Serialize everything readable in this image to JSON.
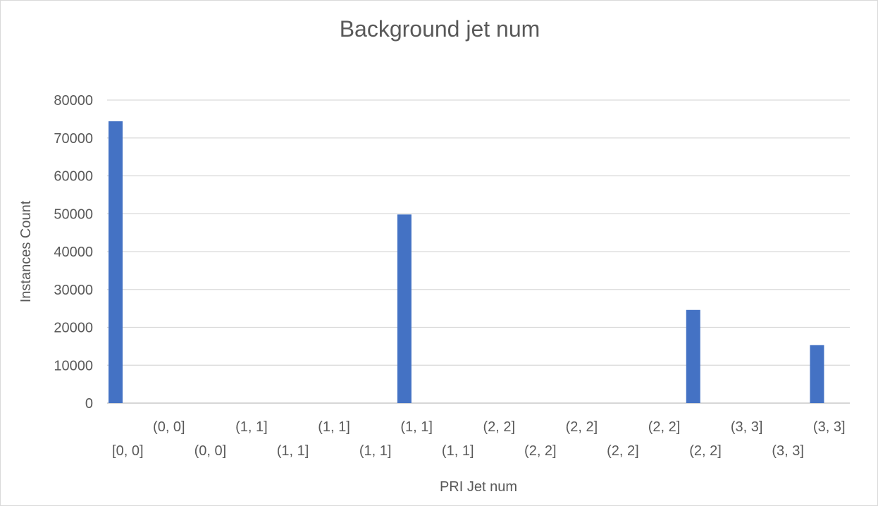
{
  "chart_data": {
    "type": "bar",
    "title": "Background jet num",
    "xlabel": "PRI Jet num",
    "ylabel": "Instances Count",
    "categories": [
      "[0, 0]",
      "(0, 0]",
      "(0, 0]",
      "(1, 1]",
      "(1, 1]",
      "(1, 1]",
      "(1, 1]",
      "(1, 1]",
      "(1, 1]",
      "(2, 2]",
      "(2, 2]",
      "(2, 2]",
      "(2, 2]",
      "(2, 2]",
      "(2, 2]",
      "(3, 3]",
      "(3, 3]",
      "(3, 3]"
    ],
    "series": [
      {
        "values": [
          74400,
          0,
          0,
          0,
          0,
          0,
          0,
          49800,
          0,
          0,
          0,
          0,
          0,
          0,
          24600,
          0,
          0,
          15300
        ],
        "color": "#4472C4"
      }
    ],
    "ylim": [
      0,
      80000
    ],
    "yticks": [
      0,
      10000,
      20000,
      30000,
      40000,
      50000,
      60000,
      70000,
      80000
    ],
    "grid": true,
    "legend": "none"
  }
}
